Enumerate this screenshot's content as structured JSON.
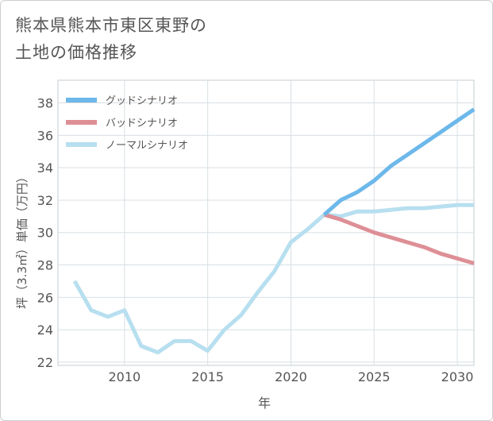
{
  "title_lines": [
    "熊本県熊本市東区東野の",
    "土地の価格推移"
  ],
  "chart_data": {
    "type": "line",
    "xlabel": "年",
    "ylabel": "坪（3.3㎡）単価（万円）",
    "xlim": [
      2006,
      2031
    ],
    "ylim": [
      21.8,
      39.4
    ],
    "xticks": [
      2010,
      2015,
      2020,
      2025,
      2030
    ],
    "yticks": [
      22,
      24,
      26,
      28,
      30,
      32,
      34,
      36,
      38
    ],
    "grid": true,
    "legend_position": "top-left",
    "series": [
      {
        "name": "グッドシナリオ",
        "color": "#6cb8ea",
        "x": [
          2022,
          2023,
          2024,
          2025,
          2026,
          2027,
          2028,
          2029,
          2030,
          2031
        ],
        "values": [
          31.1,
          32.0,
          32.5,
          33.2,
          34.1,
          34.8,
          35.5,
          36.2,
          36.9,
          37.6
        ]
      },
      {
        "name": "バッドシナリオ",
        "color": "#de8f96",
        "x": [
          2022,
          2023,
          2024,
          2025,
          2026,
          2027,
          2028,
          2029,
          2030,
          2031
        ],
        "values": [
          31.1,
          30.8,
          30.4,
          30.0,
          29.7,
          29.4,
          29.1,
          28.7,
          28.4,
          28.1
        ]
      },
      {
        "name": "ノーマルシナリオ",
        "color": "#b7dfef",
        "x": [
          2007,
          2008,
          2009,
          2010,
          2011,
          2012,
          2013,
          2014,
          2015,
          2016,
          2017,
          2018,
          2019,
          2020,
          2021,
          2022,
          2023,
          2024,
          2025,
          2026,
          2027,
          2028,
          2029,
          2030,
          2031
        ],
        "values": [
          27.0,
          25.2,
          24.8,
          25.2,
          23.0,
          22.6,
          23.3,
          23.3,
          22.7,
          24.0,
          24.9,
          26.3,
          27.6,
          29.4,
          30.2,
          31.1,
          31.0,
          31.3,
          31.3,
          31.4,
          31.5,
          31.5,
          31.6,
          31.7,
          31.7
        ]
      }
    ]
  }
}
